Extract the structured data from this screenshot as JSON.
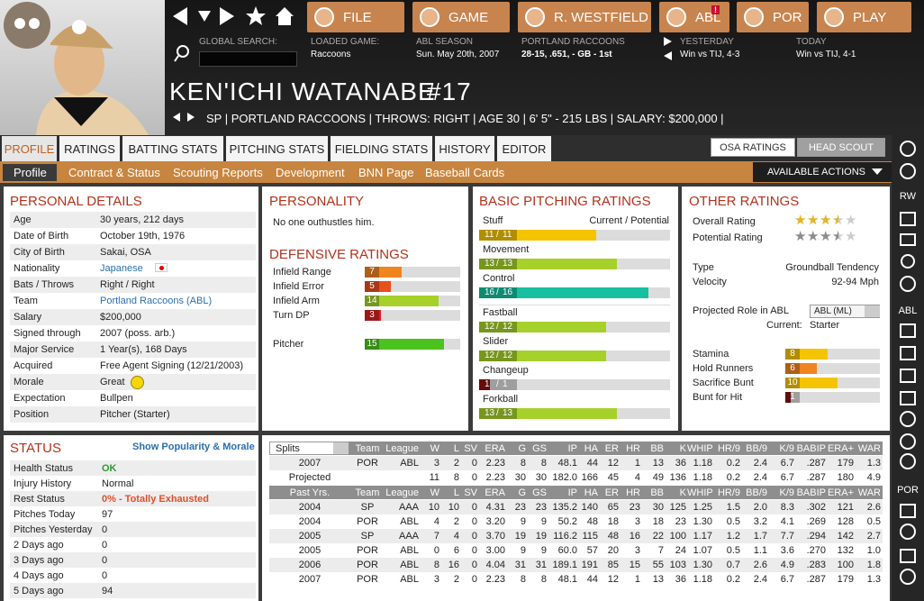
{
  "nav": {
    "buttons": [
      "FILE",
      "GAME",
      "R. WESTFIELD",
      "ABL",
      "POR",
      "PLAY"
    ],
    "badge": "!"
  },
  "header": {
    "search_label": "GLOBAL SEARCH:",
    "info": [
      {
        "label": "LOADED GAME:",
        "value": "Raccoons"
      },
      {
        "label": "ABL SEASON",
        "value": "Sun. May 20th, 2007"
      },
      {
        "label": "PORTLAND RACCOONS",
        "value": "28-15, .651, - GB - 1st"
      },
      {
        "label": "YESTERDAY",
        "value": "Win vs TIJ, 4-3"
      },
      {
        "label": "TODAY",
        "value": "Win vs TIJ, 4-1"
      }
    ]
  },
  "player": {
    "name": "KEN'ICHI WATANABE",
    "number": "#17",
    "summary": "SP | PORTLAND RACCOONS | THROWS: RIGHT | AGE 30 | 6' 5\" - 215 LBS | SALARY: $200,000 |"
  },
  "tabs": [
    "PROFILE",
    "RATINGS",
    "BATTING STATS",
    "PITCHING STATS",
    "FIELDING STATS",
    "HISTORY",
    "EDITOR"
  ],
  "scout_tabs": [
    "OSA RATINGS",
    "HEAD SCOUT"
  ],
  "subtabs": [
    "Profile",
    "Contract & Status",
    "Scouting Reports",
    "Development",
    "BNN Page",
    "Baseball Cards"
  ],
  "actions": "AVAILABLE ACTIONS",
  "sidebar_labels": [
    "RW",
    "ABL",
    "POR"
  ],
  "personal_details": {
    "title": "PERSONAL DETAILS",
    "rows": [
      [
        "Age",
        "30 years, 212 days"
      ],
      [
        "Date of Birth",
        "October 19th, 1976"
      ],
      [
        "City of Birth",
        "Sakai, OSA"
      ],
      [
        "Nationality",
        "Japanese"
      ],
      [
        "Bats / Throws",
        "Right / Right"
      ],
      [
        "Team",
        "Portland Raccoons (ABL)"
      ],
      [
        "Salary",
        "$200,000"
      ],
      [
        "Signed through",
        "2007 (poss. arb.)"
      ],
      [
        "Major Service",
        "1 Year(s), 168 Days"
      ],
      [
        "Acquired",
        "Free Agent Signing (12/21/2003)"
      ],
      [
        "Morale",
        "Great"
      ],
      [
        "Expectation",
        "Bullpen"
      ],
      [
        "Position",
        "Pitcher (Starter)"
      ]
    ]
  },
  "personality": {
    "title": "PERSONALITY",
    "text": "No one outhustles him."
  },
  "defensive_ratings": {
    "title": "DEFENSIVE RATINGS",
    "rows": [
      {
        "name": "Infield Range",
        "value": 7
      },
      {
        "name": "Infield Error",
        "value": 5
      },
      {
        "name": "Infield Arm",
        "value": 14
      },
      {
        "name": "Turn DP",
        "value": 3
      },
      {
        "name": "Pitcher",
        "value": 15
      }
    ]
  },
  "pitching_ratings": {
    "title": "BASIC PITCHING RATINGS",
    "legend": "Current / Potential",
    "rows": [
      {
        "name": "Stuff",
        "current": 11,
        "potential": 11
      },
      {
        "name": "Movement",
        "current": 13,
        "potential": 13
      },
      {
        "name": "Control",
        "current": 16,
        "potential": 16
      },
      {
        "name": "Fastball",
        "current": 12,
        "potential": 12
      },
      {
        "name": "Slider",
        "current": 12,
        "potential": 12
      },
      {
        "name": "Changeup",
        "current": 1,
        "potential": 1
      },
      {
        "name": "Forkball",
        "current": 13,
        "potential": 13
      }
    ]
  },
  "other_ratings": {
    "title": "OTHER RATINGS",
    "stars": [
      {
        "name": "Overall Rating",
        "value": 3.5,
        "color": "#e6b422"
      },
      {
        "name": "Potential Rating",
        "value": 3.5,
        "color": "#8c8c8c"
      }
    ],
    "info": [
      [
        "Type",
        "Groundball Tendency"
      ],
      [
        "Velocity",
        "92-94 Mph"
      ]
    ],
    "role_label": "Projected Role in ABL",
    "role": "ABL (ML)",
    "current_label": "Current:",
    "current": "Starter",
    "bars": [
      {
        "name": "Stamina",
        "value": 8
      },
      {
        "name": "Hold Runners",
        "value": 6
      },
      {
        "name": "Sacrifice Bunt",
        "value": 10
      },
      {
        "name": "Bunt for Hit",
        "value": 1
      }
    ]
  },
  "status": {
    "title": "STATUS",
    "link": "Show Popularity & Morale",
    "rows": [
      [
        "Health Status",
        "OK"
      ],
      [
        "Injury History",
        "Normal"
      ],
      [
        "Rest Status",
        "0% - Totally Exhausted"
      ],
      [
        "Pitches Today",
        "97"
      ],
      [
        "Pitches Yesterday",
        "0"
      ],
      [
        "2 Days ago",
        "0"
      ],
      [
        "3 Days ago",
        "0"
      ],
      [
        "4 Days ago",
        "0"
      ],
      [
        "5 Days ago",
        "94"
      ]
    ]
  },
  "stats": {
    "splits": "Splits",
    "columns": [
      "Team",
      "League",
      "W",
      "L",
      "SV",
      "ERA",
      "G",
      "GS",
      "IP",
      "HA",
      "ER",
      "HR",
      "BB",
      "K",
      "WHIP",
      "HR/9",
      "BB/9",
      "K/9",
      "BABIP",
      "ERA+",
      "WAR"
    ],
    "rows": [
      {
        "label": "2007",
        "team": "POR",
        "league": "ABL",
        "stats": [
          "3",
          "2",
          "0",
          "2.23",
          "8",
          "8",
          "48.1",
          "44",
          "12",
          "1",
          "13",
          "36",
          "1.18",
          "0.2",
          "2.4",
          "6.7",
          ".287",
          "179",
          "1.3"
        ]
      },
      {
        "label": "Projected",
        "stats": [
          "11",
          "8",
          "0",
          "2.23",
          "30",
          "30",
          "182.0",
          "166",
          "45",
          "4",
          "49",
          "136",
          "1.18",
          "0.2",
          "2.4",
          "6.7",
          ".287",
          "180",
          "4.9"
        ]
      }
    ],
    "past_header": "Past Yrs.",
    "past_rows": [
      {
        "label": "2004",
        "team": "SP",
        "league": "AAA",
        "stats": [
          "10",
          "10",
          "0",
          "4.31",
          "23",
          "23",
          "135.2",
          "140",
          "65",
          "23",
          "30",
          "125",
          "1.25",
          "1.5",
          "2.0",
          "8.3",
          ".302",
          "121",
          "2.6"
        ]
      },
      {
        "label": "2004",
        "team": "POR",
        "league": "ABL",
        "stats": [
          "4",
          "2",
          "0",
          "3.20",
          "9",
          "9",
          "50.2",
          "48",
          "18",
          "3",
          "18",
          "23",
          "1.30",
          "0.5",
          "3.2",
          "4.1",
          ".269",
          "128",
          "0.5"
        ]
      },
      {
        "label": "2005",
        "team": "SP",
        "league": "AAA",
        "stats": [
          "7",
          "4",
          "0",
          "3.70",
          "19",
          "19",
          "116.2",
          "115",
          "48",
          "16",
          "22",
          "100",
          "1.17",
          "1.2",
          "1.7",
          "7.7",
          ".294",
          "142",
          "2.7"
        ]
      },
      {
        "label": "2005",
        "team": "POR",
        "league": "ABL",
        "stats": [
          "0",
          "6",
          "0",
          "3.00",
          "9",
          "9",
          "60.0",
          "57",
          "20",
          "3",
          "7",
          "24",
          "1.07",
          "0.5",
          "1.1",
          "3.6",
          ".270",
          "132",
          "1.0"
        ]
      },
      {
        "label": "2006",
        "team": "POR",
        "league": "ABL",
        "stats": [
          "8",
          "16",
          "0",
          "4.04",
          "31",
          "31",
          "189.1",
          "191",
          "85",
          "15",
          "55",
          "103",
          "1.30",
          "0.7",
          "2.6",
          "4.9",
          ".283",
          "100",
          "1.8"
        ]
      },
      {
        "label": "2007",
        "team": "POR",
        "league": "ABL",
        "stats": [
          "3",
          "2",
          "0",
          "2.23",
          "8",
          "8",
          "48.1",
          "44",
          "12",
          "1",
          "13",
          "36",
          "1.18",
          "0.2",
          "2.4",
          "6.7",
          ".287",
          "179",
          "1.3"
        ]
      }
    ]
  }
}
